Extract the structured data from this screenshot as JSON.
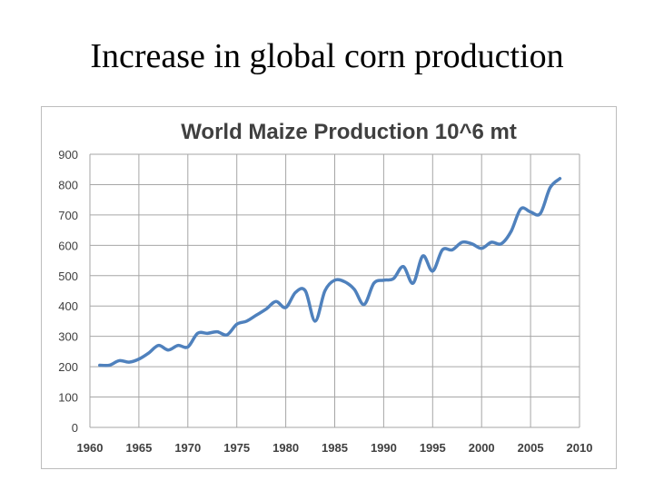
{
  "slide": {
    "title": "Increase in global corn production"
  },
  "colors": {
    "series": "#4f81bd",
    "grid": "#a6a6a6",
    "text": "#404040"
  },
  "chart_data": {
    "type": "line",
    "title": "World Maize Production 10^6 mt",
    "xlabel": "",
    "ylabel": "",
    "xlim": [
      1960,
      2010
    ],
    "ylim": [
      0,
      900
    ],
    "xticks": [
      1960,
      1965,
      1970,
      1975,
      1980,
      1985,
      1990,
      1995,
      2000,
      2005,
      2010
    ],
    "yticks": [
      0,
      100,
      200,
      300,
      400,
      500,
      600,
      700,
      800,
      900
    ],
    "grid": true,
    "legend": "none",
    "series": [
      {
        "name": "World Maize Production",
        "x": [
          1961,
          1962,
          1963,
          1964,
          1965,
          1966,
          1967,
          1968,
          1969,
          1970,
          1971,
          1972,
          1973,
          1974,
          1975,
          1976,
          1977,
          1978,
          1979,
          1980,
          1981,
          1982,
          1983,
          1984,
          1985,
          1986,
          1987,
          1988,
          1989,
          1990,
          1991,
          1992,
          1993,
          1994,
          1995,
          1996,
          1997,
          1998,
          1999,
          2000,
          2001,
          2002,
          2003,
          2004,
          2005,
          2006,
          2007,
          2008
        ],
        "values": [
          205,
          205,
          220,
          215,
          225,
          245,
          270,
          255,
          270,
          265,
          310,
          310,
          315,
          305,
          340,
          350,
          370,
          390,
          415,
          395,
          445,
          450,
          350,
          450,
          485,
          480,
          455,
          405,
          475,
          485,
          490,
          530,
          475,
          565,
          515,
          585,
          585,
          610,
          605,
          590,
          610,
          605,
          645,
          720,
          710,
          705,
          790,
          820
        ]
      }
    ]
  }
}
